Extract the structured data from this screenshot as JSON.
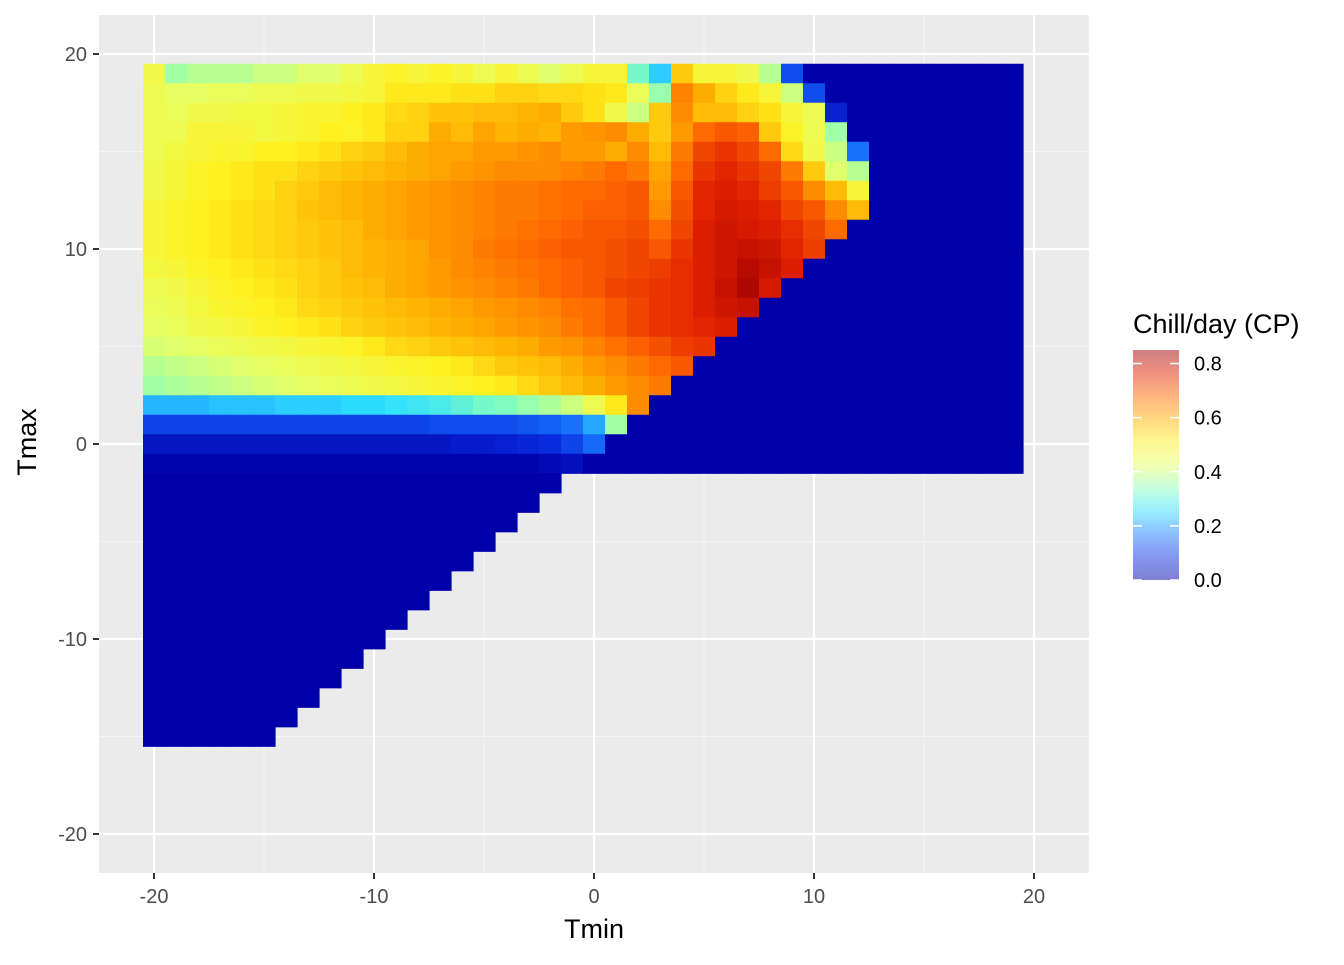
{
  "chart_data": {
    "type": "heatmap",
    "title": "",
    "xlabel": "Tmin",
    "ylabel": "Tmax",
    "xlim": [
      -22.5,
      22.5
    ],
    "ylim": [
      -22,
      22
    ],
    "x_ticks": [
      -20,
      -10,
      0,
      10,
      20
    ],
    "y_ticks": [
      -20,
      -10,
      0,
      10,
      20
    ],
    "x_tick_labels": [
      "-20",
      "-10",
      "0",
      "10",
      "20"
    ],
    "y_tick_labels": [
      "-20",
      "-10",
      "0",
      "10",
      "20"
    ],
    "grid": true,
    "legend": {
      "title": "Chill/day (CP)",
      "position": "right",
      "breaks": [
        0.0,
        0.2,
        0.4,
        0.6,
        0.8
      ],
      "break_labels": [
        "0.0",
        "0.2",
        "0.4",
        "0.6",
        "0.8"
      ],
      "range": [
        0,
        0.85
      ]
    },
    "cell_size": 1,
    "tmin_range": [
      -20,
      19
    ],
    "tmax_range": [
      -15,
      19
    ],
    "constraint": "Tmax >= Tmin",
    "colors": {
      "panel": "#EBEBEB",
      "grid_major": "#FFFFFF",
      "grid_minor": "#F5F5F5",
      "cold": "#0000AA",
      "palette": [
        "#0000AA",
        "#0A2EE0",
        "#1A7AFF",
        "#2EE0FF",
        "#8CFFB8",
        "#E6FF66",
        "#FFF020",
        "#FFB000",
        "#FF6A00",
        "#E02000",
        "#A00000"
      ]
    },
    "rows": [
      {
        "tmax": 19,
        "values": [
          0.46,
          0.36,
          0.38,
          0.38,
          0.38,
          0.4,
          0.4,
          0.42,
          0.42,
          0.45,
          0.48,
          0.5,
          0.48,
          0.5,
          0.48,
          0.45,
          0.48,
          0.45,
          0.42,
          0.45,
          0.48,
          0.48,
          0.32,
          0.24,
          0.56,
          0.48,
          0.48,
          0.46,
          0.38,
          0.12,
          0,
          0,
          0,
          0,
          0,
          0,
          0,
          0,
          0,
          0
        ]
      },
      {
        "tmax": 18,
        "values": [
          0.45,
          0.43,
          0.43,
          0.44,
          0.44,
          0.45,
          0.45,
          0.46,
          0.46,
          0.47,
          0.48,
          0.52,
          0.52,
          0.52,
          0.53,
          0.53,
          0.55,
          0.55,
          0.54,
          0.54,
          0.53,
          0.52,
          0.44,
          0.35,
          0.65,
          0.6,
          0.55,
          0.52,
          0.48,
          0.4,
          0.12,
          0,
          0,
          0,
          0,
          0,
          0,
          0,
          0,
          0
        ]
      },
      {
        "tmax": 17,
        "values": [
          0.45,
          0.44,
          0.46,
          0.46,
          0.47,
          0.47,
          0.48,
          0.49,
          0.49,
          0.51,
          0.52,
          0.54,
          0.55,
          0.57,
          0.57,
          0.58,
          0.58,
          0.59,
          0.6,
          0.56,
          0.53,
          0.46,
          0.4,
          0.56,
          0.64,
          0.58,
          0.58,
          0.55,
          0.53,
          0.48,
          0.45,
          0.06,
          0,
          0,
          0,
          0,
          0,
          0,
          0,
          0
        ]
      },
      {
        "tmax": 16,
        "values": [
          0.45,
          0.45,
          0.48,
          0.48,
          0.48,
          0.47,
          0.48,
          0.49,
          0.51,
          0.5,
          0.52,
          0.55,
          0.55,
          0.6,
          0.58,
          0.61,
          0.59,
          0.6,
          0.59,
          0.62,
          0.63,
          0.64,
          0.6,
          0.56,
          0.62,
          0.68,
          0.7,
          0.69,
          0.56,
          0.5,
          0.45,
          0.36,
          0,
          0,
          0,
          0,
          0,
          0,
          0,
          0
        ]
      },
      {
        "tmax": 15,
        "values": [
          0.45,
          0.47,
          0.48,
          0.49,
          0.49,
          0.51,
          0.51,
          0.52,
          0.53,
          0.55,
          0.56,
          0.58,
          0.6,
          0.61,
          0.61,
          0.62,
          0.62,
          0.63,
          0.64,
          0.62,
          0.62,
          0.6,
          0.64,
          0.58,
          0.66,
          0.72,
          0.74,
          0.72,
          0.68,
          0.54,
          0.46,
          0.4,
          0.16,
          0,
          0,
          0,
          0,
          0,
          0,
          0
        ]
      },
      {
        "tmax": 14,
        "values": [
          0.46,
          0.48,
          0.5,
          0.51,
          0.52,
          0.53,
          0.53,
          0.55,
          0.56,
          0.57,
          0.58,
          0.59,
          0.6,
          0.61,
          0.62,
          0.63,
          0.64,
          0.64,
          0.64,
          0.65,
          0.66,
          0.68,
          0.66,
          0.61,
          0.68,
          0.74,
          0.76,
          0.74,
          0.72,
          0.66,
          0.56,
          0.42,
          0.38,
          0,
          0,
          0,
          0,
          0,
          0,
          0
        ]
      },
      {
        "tmax": 13,
        "values": [
          0.46,
          0.48,
          0.5,
          0.51,
          0.52,
          0.53,
          0.55,
          0.56,
          0.58,
          0.59,
          0.6,
          0.61,
          0.62,
          0.63,
          0.64,
          0.65,
          0.66,
          0.66,
          0.67,
          0.68,
          0.68,
          0.69,
          0.7,
          0.62,
          0.7,
          0.76,
          0.77,
          0.76,
          0.73,
          0.7,
          0.64,
          0.58,
          0.48,
          0,
          0,
          0,
          0,
          0,
          0,
          0
        ]
      },
      {
        "tmax": 12,
        "values": [
          0.48,
          0.5,
          0.51,
          0.52,
          0.53,
          0.54,
          0.55,
          0.57,
          0.58,
          0.59,
          0.6,
          0.61,
          0.62,
          0.63,
          0.64,
          0.65,
          0.66,
          0.66,
          0.67,
          0.68,
          0.69,
          0.69,
          0.7,
          0.64,
          0.71,
          0.76,
          0.78,
          0.77,
          0.76,
          0.72,
          0.7,
          0.64,
          0.58,
          0,
          0,
          0,
          0,
          0,
          0,
          0
        ]
      },
      {
        "tmax": 11,
        "values": [
          0.48,
          0.5,
          0.51,
          0.52,
          0.53,
          0.54,
          0.55,
          0.56,
          0.57,
          0.58,
          0.6,
          0.61,
          0.62,
          0.63,
          0.64,
          0.65,
          0.66,
          0.67,
          0.68,
          0.69,
          0.7,
          0.7,
          0.71,
          0.68,
          0.72,
          0.77,
          0.79,
          0.78,
          0.77,
          0.75,
          0.72,
          0.68,
          0,
          0,
          0,
          0,
          0,
          0,
          0,
          0
        ]
      },
      {
        "tmax": 10,
        "values": [
          0.48,
          0.5,
          0.51,
          0.52,
          0.53,
          0.54,
          0.55,
          0.56,
          0.57,
          0.58,
          0.59,
          0.6,
          0.61,
          0.63,
          0.64,
          0.66,
          0.67,
          0.68,
          0.69,
          0.7,
          0.7,
          0.71,
          0.72,
          0.7,
          0.74,
          0.77,
          0.79,
          0.8,
          0.79,
          0.76,
          0.73,
          0,
          0,
          0,
          0,
          0,
          0,
          0,
          0,
          0
        ]
      },
      {
        "tmax": 9,
        "values": [
          0.47,
          0.48,
          0.5,
          0.51,
          0.52,
          0.53,
          0.54,
          0.55,
          0.56,
          0.58,
          0.59,
          0.6,
          0.61,
          0.62,
          0.64,
          0.65,
          0.66,
          0.67,
          0.68,
          0.69,
          0.7,
          0.71,
          0.72,
          0.73,
          0.75,
          0.77,
          0.79,
          0.82,
          0.8,
          0.77,
          0,
          0,
          0,
          0,
          0,
          0,
          0,
          0,
          0,
          0
        ]
      },
      {
        "tmax": 8,
        "values": [
          0.45,
          0.46,
          0.48,
          0.5,
          0.51,
          0.52,
          0.53,
          0.55,
          0.56,
          0.57,
          0.58,
          0.6,
          0.61,
          0.62,
          0.63,
          0.64,
          0.65,
          0.66,
          0.68,
          0.69,
          0.7,
          0.72,
          0.73,
          0.74,
          0.75,
          0.77,
          0.8,
          0.83,
          0.78,
          0,
          0,
          0,
          0,
          0,
          0,
          0,
          0,
          0,
          0,
          0
        ]
      },
      {
        "tmax": 7,
        "values": [
          0.44,
          0.45,
          0.47,
          0.49,
          0.5,
          0.51,
          0.52,
          0.54,
          0.55,
          0.56,
          0.57,
          0.58,
          0.59,
          0.6,
          0.61,
          0.62,
          0.63,
          0.64,
          0.65,
          0.67,
          0.68,
          0.7,
          0.72,
          0.74,
          0.75,
          0.77,
          0.79,
          0.8,
          0,
          0,
          0,
          0,
          0,
          0,
          0,
          0,
          0,
          0,
          0,
          0
        ]
      },
      {
        "tmax": 6,
        "values": [
          0.43,
          0.44,
          0.46,
          0.47,
          0.48,
          0.5,
          0.51,
          0.52,
          0.53,
          0.55,
          0.56,
          0.57,
          0.58,
          0.59,
          0.6,
          0.61,
          0.62,
          0.63,
          0.64,
          0.66,
          0.68,
          0.7,
          0.72,
          0.74,
          0.75,
          0.76,
          0.77,
          0,
          0,
          0,
          0,
          0,
          0,
          0,
          0,
          0,
          0,
          0,
          0,
          0
        ]
      },
      {
        "tmax": 5,
        "values": [
          0.41,
          0.42,
          0.43,
          0.44,
          0.45,
          0.46,
          0.47,
          0.48,
          0.49,
          0.5,
          0.52,
          0.54,
          0.55,
          0.56,
          0.57,
          0.58,
          0.59,
          0.6,
          0.62,
          0.63,
          0.65,
          0.67,
          0.69,
          0.71,
          0.73,
          0.74,
          0,
          0,
          0,
          0,
          0,
          0,
          0,
          0,
          0,
          0,
          0,
          0,
          0,
          0
        ]
      },
      {
        "tmax": 4,
        "values": [
          0.38,
          0.39,
          0.4,
          0.41,
          0.42,
          0.43,
          0.44,
          0.45,
          0.46,
          0.47,
          0.48,
          0.49,
          0.5,
          0.51,
          0.52,
          0.54,
          0.56,
          0.57,
          0.58,
          0.6,
          0.62,
          0.64,
          0.66,
          0.68,
          0.7,
          0,
          0,
          0,
          0,
          0,
          0,
          0,
          0,
          0,
          0,
          0,
          0,
          0,
          0,
          0
        ]
      },
      {
        "tmax": 3,
        "values": [
          0.36,
          0.37,
          0.38,
          0.39,
          0.4,
          0.41,
          0.42,
          0.43,
          0.44,
          0.45,
          0.46,
          0.47,
          0.48,
          0.49,
          0.5,
          0.51,
          0.52,
          0.54,
          0.56,
          0.58,
          0.6,
          0.62,
          0.64,
          0.66,
          0,
          0,
          0,
          0,
          0,
          0,
          0,
          0,
          0,
          0,
          0,
          0,
          0,
          0,
          0,
          0
        ]
      },
      {
        "tmax": 2,
        "values": [
          0.22,
          0.22,
          0.22,
          0.23,
          0.23,
          0.23,
          0.24,
          0.24,
          0.24,
          0.25,
          0.25,
          0.26,
          0.27,
          0.28,
          0.3,
          0.32,
          0.33,
          0.35,
          0.37,
          0.4,
          0.45,
          0.52,
          0.64,
          0,
          0,
          0,
          0,
          0,
          0,
          0,
          0,
          0,
          0,
          0,
          0,
          0,
          0,
          0,
          0,
          0
        ]
      },
      {
        "tmax": 1,
        "values": [
          0.11,
          0.11,
          0.11,
          0.11,
          0.11,
          0.11,
          0.11,
          0.11,
          0.11,
          0.11,
          0.11,
          0.11,
          0.11,
          0.12,
          0.12,
          0.12,
          0.12,
          0.13,
          0.14,
          0.16,
          0.21,
          0.36,
          0,
          0,
          0,
          0,
          0,
          0,
          0,
          0,
          0,
          0,
          0,
          0,
          0,
          0,
          0,
          0,
          0,
          0
        ]
      },
      {
        "tmax": 0,
        "values": [
          0.04,
          0.04,
          0.04,
          0.04,
          0.04,
          0.04,
          0.04,
          0.04,
          0.04,
          0.04,
          0.04,
          0.04,
          0.04,
          0.04,
          0.05,
          0.05,
          0.06,
          0.07,
          0.08,
          0.11,
          0.15,
          0,
          0,
          0,
          0,
          0,
          0,
          0,
          0,
          0,
          0,
          0,
          0,
          0,
          0,
          0,
          0,
          0,
          0,
          0
        ]
      },
      {
        "tmax": -1,
        "values": [
          0.01,
          0.01,
          0.01,
          0.01,
          0.01,
          0.01,
          0.01,
          0.01,
          0.01,
          0.01,
          0.01,
          0.01,
          0.01,
          0.01,
          0.01,
          0.01,
          0.01,
          0.01,
          0.02,
          0.03,
          0,
          0,
          0,
          0,
          0,
          0,
          0,
          0,
          0,
          0,
          0,
          0,
          0,
          0,
          0,
          0,
          0,
          0,
          0,
          0
        ]
      },
      {
        "tmax": -2,
        "values": [
          0,
          0,
          0,
          0,
          0,
          0,
          0,
          0,
          0,
          0,
          0,
          0,
          0,
          0,
          0,
          0,
          0,
          0,
          0
        ]
      },
      {
        "tmax": -3,
        "values": [
          0,
          0,
          0,
          0,
          0,
          0,
          0,
          0,
          0,
          0,
          0,
          0,
          0,
          0,
          0,
          0,
          0,
          0
        ]
      },
      {
        "tmax": -4,
        "values": [
          0,
          0,
          0,
          0,
          0,
          0,
          0,
          0,
          0,
          0,
          0,
          0,
          0,
          0,
          0,
          0,
          0
        ]
      },
      {
        "tmax": -5,
        "values": [
          0,
          0,
          0,
          0,
          0,
          0,
          0,
          0,
          0,
          0,
          0,
          0,
          0,
          0,
          0,
          0
        ]
      },
      {
        "tmax": -6,
        "values": [
          0,
          0,
          0,
          0,
          0,
          0,
          0,
          0,
          0,
          0,
          0,
          0,
          0,
          0,
          0
        ]
      },
      {
        "tmax": -7,
        "values": [
          0,
          0,
          0,
          0,
          0,
          0,
          0,
          0,
          0,
          0,
          0,
          0,
          0,
          0
        ]
      },
      {
        "tmax": -8,
        "values": [
          0,
          0,
          0,
          0,
          0,
          0,
          0,
          0,
          0,
          0,
          0,
          0,
          0
        ]
      },
      {
        "tmax": -9,
        "values": [
          0,
          0,
          0,
          0,
          0,
          0,
          0,
          0,
          0,
          0,
          0,
          0
        ]
      },
      {
        "tmax": -10,
        "values": [
          0,
          0,
          0,
          0,
          0,
          0,
          0,
          0,
          0,
          0,
          0
        ]
      },
      {
        "tmax": -11,
        "values": [
          0,
          0,
          0,
          0,
          0,
          0,
          0,
          0,
          0,
          0
        ]
      },
      {
        "tmax": -12,
        "values": [
          0,
          0,
          0,
          0,
          0,
          0,
          0,
          0,
          0
        ]
      },
      {
        "tmax": -13,
        "values": [
          0,
          0,
          0,
          0,
          0,
          0,
          0,
          0
        ]
      },
      {
        "tmax": -14,
        "values": [
          0,
          0,
          0,
          0,
          0,
          0,
          0
        ]
      },
      {
        "tmax": -15,
        "values": [
          0,
          0,
          0,
          0,
          0,
          0
        ]
      }
    ]
  }
}
